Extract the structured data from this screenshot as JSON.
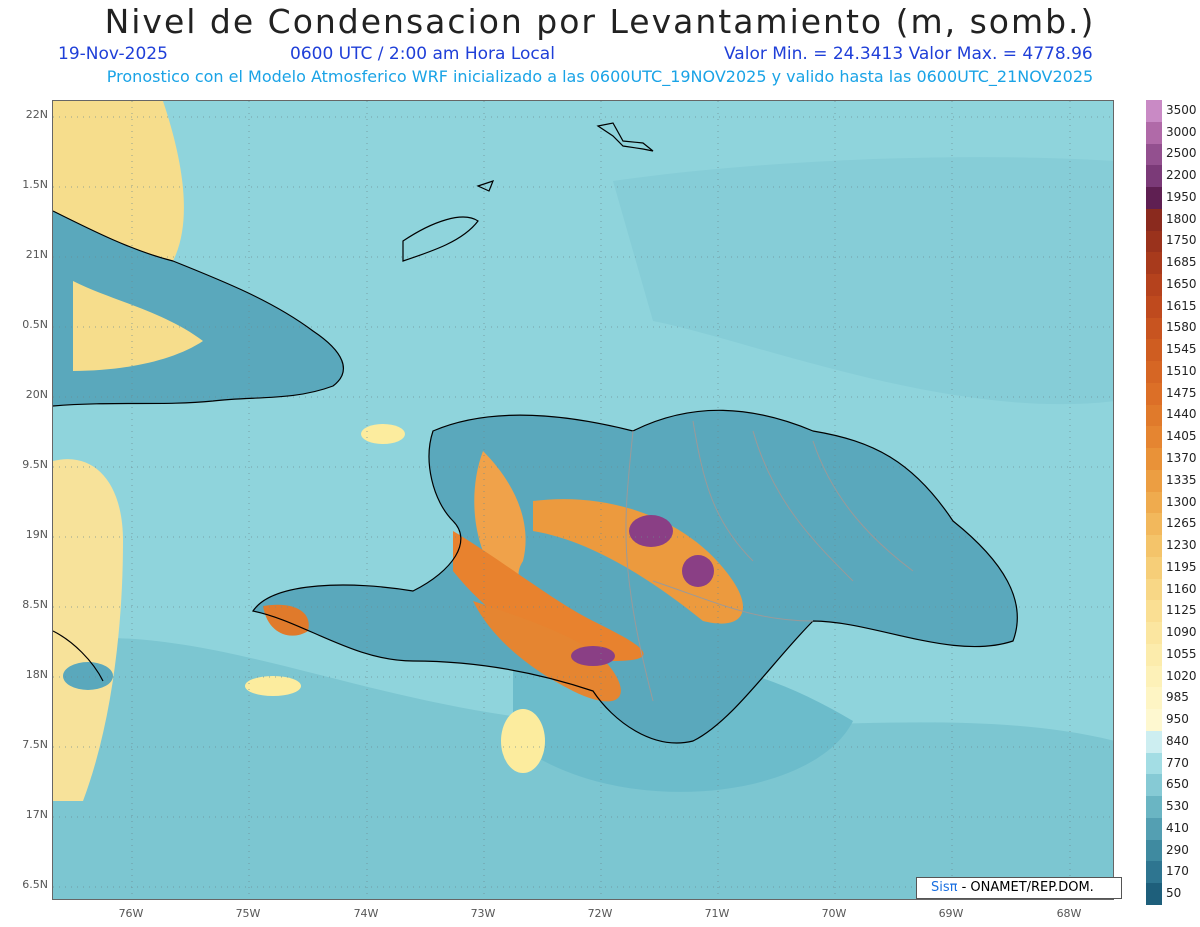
{
  "header": {
    "title": "Nivel de Condensacion por Levantamiento (m, somb.)",
    "date": "19-Nov-2025",
    "time": "0600 UTC / 2:00 am Hora Local",
    "min_max": "Valor Min. = 24.3413   Valor Max. = 4778.96",
    "forecast_note": "Pronostico con el Modelo Atmosferico WRF inicializado a las 0600UTC_19NOV2025 y valido hasta las  0600UTC_21NOV2025"
  },
  "map": {
    "lat_labels": [
      "22N",
      "1.5N",
      "21N",
      "0.5N",
      "20N",
      "9.5N",
      "19N",
      "8.5N",
      "18N",
      "7.5N",
      "17N",
      "6.5N"
    ],
    "lon_labels": [
      "76W",
      "75W",
      "74W",
      "73W",
      "72W",
      "71W",
      "70W",
      "69W",
      "68W"
    ],
    "colors": {
      "ocean": "#8fd4dc",
      "ocean_dark": "#6cbccb",
      "low": "#4a97ad",
      "warm": "#f2c87a",
      "hot": "#e07c2c",
      "peak": "#8a3f85"
    }
  },
  "colorbar": {
    "labels": [
      "3500",
      "3000",
      "2500",
      "2200",
      "1950",
      "1800",
      "1750",
      "1685",
      "1650",
      "1615",
      "1580",
      "1545",
      "1510",
      "1475",
      "1440",
      "1405",
      "1370",
      "1335",
      "1300",
      "1265",
      "1230",
      "1195",
      "1160",
      "1125",
      "1090",
      "1055",
      "1020",
      "985",
      "950",
      "840",
      "770",
      "650",
      "530",
      "410",
      "290",
      "170",
      "50"
    ],
    "colors": [
      "#c98ac5",
      "#b06aa8",
      "#93508f",
      "#7b3a78",
      "#5f1f52",
      "#8a2a1e",
      "#9a321c",
      "#a83a1c",
      "#b5421d",
      "#bf4a1e",
      "#c85420",
      "#cf5d21",
      "#d66624",
      "#dc6f27",
      "#e07a2b",
      "#e58531",
      "#e99238",
      "#ec9e42",
      "#efab4e",
      "#f2b85c",
      "#f4c46a",
      "#f6ce78",
      "#f8d786",
      "#fadf93",
      "#fbe6a0",
      "#fcecac",
      "#fdf1b8",
      "#fef5c4",
      "#fef8d0",
      "#cdeef1",
      "#a3dde4",
      "#86cad5",
      "#6ab5c3",
      "#549fb2",
      "#3f8aa0",
      "#2e7590",
      "#1e5f7b"
    ]
  },
  "credit": {
    "brand": "Sisπ",
    "text": " - ONAMET/REP.DOM."
  }
}
